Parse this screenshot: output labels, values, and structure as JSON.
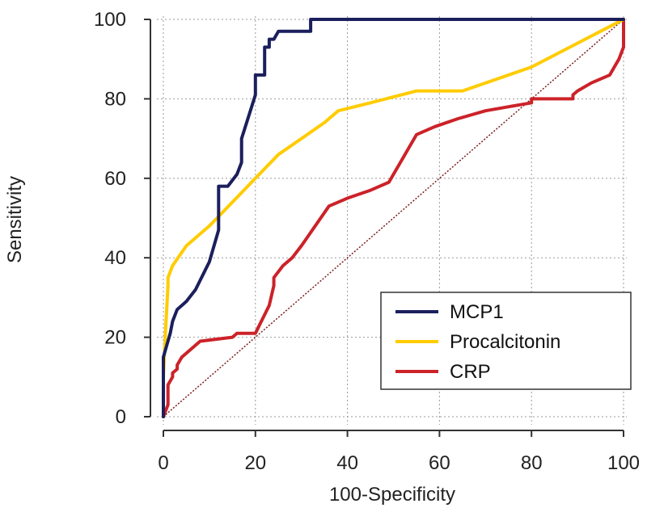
{
  "chart_data": {
    "type": "line",
    "title": "",
    "xlabel": "100-Specificity",
    "ylabel": "Sensitivity",
    "xlim": [
      0,
      100
    ],
    "ylim": [
      0,
      100
    ],
    "xticks": [
      "0",
      "20",
      "40",
      "60",
      "80",
      "100"
    ],
    "yticks": [
      "0",
      "20",
      "40",
      "60",
      "80",
      "100"
    ],
    "grid": true,
    "legend_position": "bottom-right",
    "series": [
      {
        "name": "MCP1",
        "color": "#1b1f5c",
        "points": [
          [
            0,
            0
          ],
          [
            0,
            15
          ],
          [
            1.5,
            21
          ],
          [
            2,
            24
          ],
          [
            3,
            27
          ],
          [
            4,
            28
          ],
          [
            5,
            29
          ],
          [
            7,
            32
          ],
          [
            10,
            39
          ],
          [
            12,
            47
          ],
          [
            12,
            58
          ],
          [
            14,
            58
          ],
          [
            16,
            61
          ],
          [
            17,
            64
          ],
          [
            17,
            70
          ],
          [
            20,
            81
          ],
          [
            20,
            86
          ],
          [
            22,
            86
          ],
          [
            22,
            93
          ],
          [
            23,
            93
          ],
          [
            23,
            95
          ],
          [
            24,
            95
          ],
          [
            25,
            97
          ],
          [
            27,
            97
          ],
          [
            32,
            97
          ],
          [
            32,
            100
          ],
          [
            100,
            100
          ]
        ]
      },
      {
        "name": "Procalcitonin",
        "color": "#ffcc00",
        "points": [
          [
            0,
            0
          ],
          [
            0,
            10
          ],
          [
            0.5,
            22
          ],
          [
            1,
            33
          ],
          [
            1,
            35
          ],
          [
            2,
            38
          ],
          [
            5,
            43
          ],
          [
            10,
            48
          ],
          [
            15,
            54
          ],
          [
            20,
            60
          ],
          [
            25,
            66
          ],
          [
            30,
            70
          ],
          [
            35,
            74
          ],
          [
            38,
            77
          ],
          [
            45,
            79
          ],
          [
            55,
            82
          ],
          [
            65,
            82
          ],
          [
            80,
            88
          ],
          [
            90,
            94
          ],
          [
            100,
            100
          ]
        ]
      },
      {
        "name": "CRP",
        "color": "#cc2229",
        "points": [
          [
            0,
            0
          ],
          [
            1,
            3
          ],
          [
            1,
            8
          ],
          [
            2,
            10
          ],
          [
            2,
            11
          ],
          [
            3,
            12
          ],
          [
            3,
            13
          ],
          [
            4,
            15
          ],
          [
            8,
            19
          ],
          [
            15,
            20
          ],
          [
            16,
            21
          ],
          [
            20,
            21
          ],
          [
            23,
            28
          ],
          [
            24,
            33
          ],
          [
            24,
            35
          ],
          [
            26,
            38
          ],
          [
            28,
            40
          ],
          [
            30,
            43
          ],
          [
            36,
            53
          ],
          [
            40,
            55
          ],
          [
            45,
            57
          ],
          [
            49,
            59
          ],
          [
            52,
            65
          ],
          [
            55,
            71
          ],
          [
            59,
            73
          ],
          [
            64,
            75
          ],
          [
            70,
            77
          ],
          [
            75,
            78
          ],
          [
            80,
            79
          ],
          [
            80,
            80
          ],
          [
            85,
            80
          ],
          [
            89,
            80
          ],
          [
            89,
            81
          ],
          [
            90,
            82
          ],
          [
            93,
            84
          ],
          [
            97,
            86
          ],
          [
            98,
            88
          ],
          [
            99,
            90
          ],
          [
            100,
            93
          ],
          [
            100,
            100
          ]
        ]
      }
    ],
    "reference_line": {
      "points": [
        [
          0,
          0
        ],
        [
          100,
          100
        ]
      ],
      "color": "#7a1d1d"
    }
  },
  "legend": {
    "items": [
      {
        "label": "MCP1",
        "color": "#1b1f5c"
      },
      {
        "label": "Procalcitonin",
        "color": "#ffcc00"
      },
      {
        "label": "CRP",
        "color": "#cc2229"
      }
    ]
  }
}
